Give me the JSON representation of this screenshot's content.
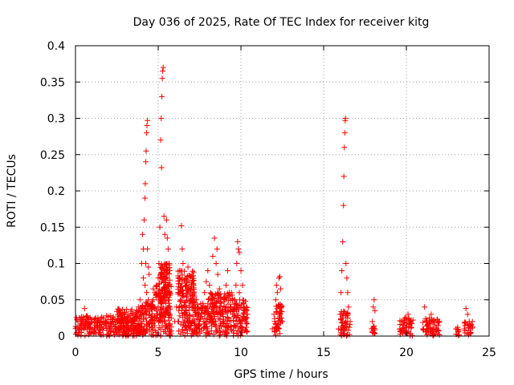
{
  "chart_data": {
    "type": "scatter",
    "title": "Day 036 of 2025, Rate Of TEC Index for receiver kitg",
    "xlabel": "GPS time / hours",
    "ylabel": "ROTI / TECUs",
    "xlim": [
      0,
      25
    ],
    "ylim": [
      0,
      0.4
    ],
    "xticks": [
      0,
      5,
      10,
      15,
      20,
      25
    ],
    "xtick_labels": [
      "0",
      "5",
      "10",
      "15",
      "20",
      "25"
    ],
    "yticks": [
      0,
      0.05,
      0.1,
      0.15,
      0.2,
      0.25,
      0.3,
      0.35,
      0.4
    ],
    "ytick_labels": [
      "0",
      "0.05",
      "0.1",
      "0.15",
      "0.2",
      "0.25",
      "0.3",
      "0.35",
      "0.4"
    ],
    "grid": true,
    "marker": "+",
    "color": "#ff0000",
    "series": [
      {
        "name": "ROTI",
        "points": [
          [
            0.1,
            0.012
          ],
          [
            0.15,
            0.02
          ],
          [
            0.2,
            0.008
          ],
          [
            0.25,
            0.025
          ],
          [
            0.3,
            0.015
          ],
          [
            0.35,
            0.005
          ],
          [
            0.4,
            0.018
          ],
          [
            0.45,
            0.022
          ],
          [
            0.5,
            0.01
          ],
          [
            0.55,
            0.038
          ],
          [
            0.6,
            0.014
          ],
          [
            0.65,
            0.02
          ],
          [
            0.7,
            0.009
          ],
          [
            0.8,
            0.016
          ],
          [
            0.9,
            0.012
          ],
          [
            1.0,
            0.02
          ],
          [
            1.1,
            0.006
          ],
          [
            1.2,
            0.015
          ],
          [
            1.3,
            0.018
          ],
          [
            1.4,
            0.022
          ],
          [
            1.5,
            0.01
          ],
          [
            1.6,
            0.016
          ],
          [
            1.7,
            0.012
          ],
          [
            1.8,
            0.02
          ],
          [
            1.9,
            0.008
          ],
          [
            2.0,
            0.014
          ],
          [
            2.1,
            0.018
          ],
          [
            2.2,
            0.011
          ],
          [
            2.3,
            0.016
          ],
          [
            2.4,
            0.02
          ],
          [
            2.5,
            0.034
          ],
          [
            2.6,
            0.012
          ],
          [
            2.7,
            0.018
          ],
          [
            2.8,
            0.022
          ],
          [
            2.9,
            0.015
          ],
          [
            3.0,
            0.02
          ],
          [
            3.1,
            0.025
          ],
          [
            3.2,
            0.018
          ],
          [
            3.3,
            0.028
          ],
          [
            3.4,
            0.022
          ],
          [
            3.5,
            0.03
          ],
          [
            3.6,
            0.026
          ],
          [
            3.7,
            0.035
          ],
          [
            3.8,
            0.04
          ],
          [
            3.9,
            0.05
          ],
          [
            4.0,
            0.1
          ],
          [
            4.05,
            0.14
          ],
          [
            4.1,
            0.12
          ],
          [
            4.15,
            0.16
          ],
          [
            4.2,
            0.19
          ],
          [
            4.22,
            0.21
          ],
          [
            4.25,
            0.24
          ],
          [
            4.27,
            0.255
          ],
          [
            4.3,
            0.28
          ],
          [
            4.32,
            0.29
          ],
          [
            4.35,
            0.297
          ],
          [
            4.1,
            0.08
          ],
          [
            4.2,
            0.07
          ],
          [
            4.3,
            0.06
          ],
          [
            4.4,
            0.05
          ],
          [
            4.5,
            0.04
          ],
          [
            4.25,
            0.1
          ],
          [
            4.35,
            0.12
          ],
          [
            4.4,
            0.095
          ],
          [
            4.45,
            0.085
          ],
          [
            4.15,
            0.03
          ],
          [
            4.3,
            0.02
          ],
          [
            4.6,
            0.04
          ],
          [
            4.7,
            0.05
          ],
          [
            4.8,
            0.06
          ],
          [
            4.9,
            0.07
          ],
          [
            5.0,
            0.08
          ],
          [
            5.05,
            0.1
          ],
          [
            5.1,
            0.15
          ],
          [
            5.15,
            0.27
          ],
          [
            5.18,
            0.3
          ],
          [
            5.22,
            0.33
          ],
          [
            5.25,
            0.355
          ],
          [
            5.27,
            0.365
          ],
          [
            5.3,
            0.37
          ],
          [
            5.2,
            0.232
          ],
          [
            5.35,
            0.165
          ],
          [
            5.4,
            0.14
          ],
          [
            5.5,
            0.16
          ],
          [
            5.55,
            0.135
          ],
          [
            5.6,
            0.12
          ],
          [
            5.65,
            0.1
          ],
          [
            5.7,
            0.09
          ],
          [
            5.5,
            0.06
          ],
          [
            5.6,
            0.05
          ],
          [
            5.7,
            0.03
          ],
          [
            5.4,
            0.02
          ],
          [
            5.3,
            0.04
          ],
          [
            5.1,
            0.025
          ],
          [
            6.0,
            0.02
          ],
          [
            6.1,
            0.04
          ],
          [
            6.2,
            0.06
          ],
          [
            6.3,
            0.09
          ],
          [
            6.4,
            0.152
          ],
          [
            6.45,
            0.12
          ],
          [
            6.5,
            0.1
          ],
          [
            6.6,
            0.08
          ],
          [
            6.7,
            0.07
          ],
          [
            6.8,
            0.095
          ],
          [
            6.9,
            0.06
          ],
          [
            7.0,
            0.05
          ],
          [
            7.1,
            0.04
          ],
          [
            7.2,
            0.035
          ],
          [
            7.3,
            0.05
          ],
          [
            7.4,
            0.03
          ],
          [
            7.5,
            0.02
          ],
          [
            6.2,
            0.02
          ],
          [
            6.5,
            0.015
          ],
          [
            6.8,
            0.025
          ],
          [
            7.0,
            0.018
          ],
          [
            7.6,
            0.03
          ],
          [
            7.7,
            0.045
          ],
          [
            7.8,
            0.06
          ],
          [
            7.9,
            0.075
          ],
          [
            8.0,
            0.09
          ],
          [
            8.1,
            0.07
          ],
          [
            8.2,
            0.05
          ],
          [
            8.3,
            0.11
          ],
          [
            8.4,
            0.135
          ],
          [
            8.5,
            0.1
          ],
          [
            8.55,
            0.12
          ],
          [
            8.6,
            0.085
          ],
          [
            8.7,
            0.065
          ],
          [
            8.8,
            0.045
          ],
          [
            8.9,
            0.03
          ],
          [
            9.0,
            0.05
          ],
          [
            9.1,
            0.07
          ],
          [
            9.2,
            0.09
          ],
          [
            9.3,
            0.06
          ],
          [
            9.4,
            0.04
          ],
          [
            8.1,
            0.02
          ],
          [
            8.5,
            0.015
          ],
          [
            8.9,
            0.02
          ],
          [
            9.5,
            0.03
          ],
          [
            9.6,
            0.05
          ],
          [
            9.7,
            0.07
          ],
          [
            9.75,
            0.1
          ],
          [
            9.8,
            0.13
          ],
          [
            9.85,
            0.12
          ],
          [
            9.9,
            0.115
          ],
          [
            10.0,
            0.09
          ],
          [
            10.1,
            0.07
          ],
          [
            10.2,
            0.04
          ],
          [
            10.3,
            0.02
          ],
          [
            10.4,
            0.03
          ],
          [
            9.9,
            0.06
          ],
          [
            10.0,
            0.01
          ],
          [
            11.9,
            0.01
          ],
          [
            12.0,
            0.03
          ],
          [
            12.1,
            0.05
          ],
          [
            12.15,
            0.07
          ],
          [
            12.2,
            0.06
          ],
          [
            12.3,
            0.08
          ],
          [
            12.35,
            0.082
          ],
          [
            12.4,
            0.065
          ],
          [
            12.45,
            0.04
          ],
          [
            12.5,
            0.02
          ],
          [
            12.2,
            0.012
          ],
          [
            12.3,
            0.025
          ],
          [
            15.9,
            0.01
          ],
          [
            16.0,
            0.03
          ],
          [
            16.05,
            0.06
          ],
          [
            16.1,
            0.09
          ],
          [
            16.15,
            0.13
          ],
          [
            16.2,
            0.18
          ],
          [
            16.22,
            0.22
          ],
          [
            16.25,
            0.26
          ],
          [
            16.28,
            0.28
          ],
          [
            16.3,
            0.297
          ],
          [
            16.32,
            0.3
          ],
          [
            16.35,
            0.1
          ],
          [
            16.4,
            0.08
          ],
          [
            16.45,
            0.06
          ],
          [
            16.5,
            0.04
          ],
          [
            16.6,
            0.02
          ],
          [
            16.3,
            0.012
          ],
          [
            16.45,
            0.025
          ],
          [
            17.9,
            0.01
          ],
          [
            17.95,
            0.02
          ],
          [
            18.0,
            0.04
          ],
          [
            18.05,
            0.05
          ],
          [
            18.1,
            0.035
          ],
          [
            18.0,
            0.012
          ],
          [
            19.6,
            0.01
          ],
          [
            19.7,
            0.02
          ],
          [
            19.8,
            0.015
          ],
          [
            19.9,
            0.025
          ],
          [
            20.0,
            0.018
          ],
          [
            20.1,
            0.03
          ],
          [
            20.2,
            0.02
          ],
          [
            20.3,
            0.012
          ],
          [
            20.4,
            0.022
          ],
          [
            21.0,
            0.01
          ],
          [
            21.1,
            0.04
          ],
          [
            21.2,
            0.02
          ],
          [
            21.3,
            0.015
          ],
          [
            21.4,
            0.025
          ],
          [
            21.5,
            0.03
          ],
          [
            21.6,
            0.02
          ],
          [
            21.7,
            0.018
          ],
          [
            21.8,
            0.012
          ],
          [
            21.9,
            0.02
          ],
          [
            23.0,
            0.01
          ],
          [
            23.1,
            0.012
          ],
          [
            23.5,
            0.01
          ],
          [
            23.6,
            0.038
          ],
          [
            23.7,
            0.03
          ],
          [
            23.8,
            0.02
          ],
          [
            23.9,
            0.015
          ]
        ]
      }
    ],
    "bands": [
      {
        "x": [
          0.0,
          4.0
        ],
        "y": [
          0.0,
          0.028
        ]
      },
      {
        "x": [
          2.5,
          4.0
        ],
        "y": [
          0.0,
          0.038
        ]
      },
      {
        "x": [
          4.0,
          4.6
        ],
        "y": [
          0.0,
          0.05
        ]
      },
      {
        "x": [
          4.6,
          5.8
        ],
        "y": [
          0.0,
          0.07
        ]
      },
      {
        "x": [
          5.0,
          5.7
        ],
        "y": [
          0.05,
          0.1
        ]
      },
      {
        "x": [
          6.2,
          7.2
        ],
        "y": [
          0.0,
          0.09
        ]
      },
      {
        "x": [
          7.2,
          8.0
        ],
        "y": [
          0.0,
          0.045
        ]
      },
      {
        "x": [
          8.0,
          9.5
        ],
        "y": [
          0.0,
          0.06
        ]
      },
      {
        "x": [
          9.5,
          10.4
        ],
        "y": [
          0.0,
          0.05
        ]
      },
      {
        "x": [
          12.0,
          12.5
        ],
        "y": [
          0.0,
          0.045
        ]
      },
      {
        "x": [
          16.0,
          16.6
        ],
        "y": [
          0.0,
          0.035
        ]
      },
      {
        "x": [
          17.9,
          18.1
        ],
        "y": [
          0.0,
          0.015
        ]
      },
      {
        "x": [
          19.6,
          20.4
        ],
        "y": [
          0.0,
          0.025
        ]
      },
      {
        "x": [
          21.0,
          22.0
        ],
        "y": [
          0.0,
          0.025
        ]
      },
      {
        "x": [
          23.0,
          23.2
        ],
        "y": [
          0.0,
          0.01
        ]
      },
      {
        "x": [
          23.5,
          24.0
        ],
        "y": [
          0.0,
          0.02
        ]
      }
    ]
  }
}
